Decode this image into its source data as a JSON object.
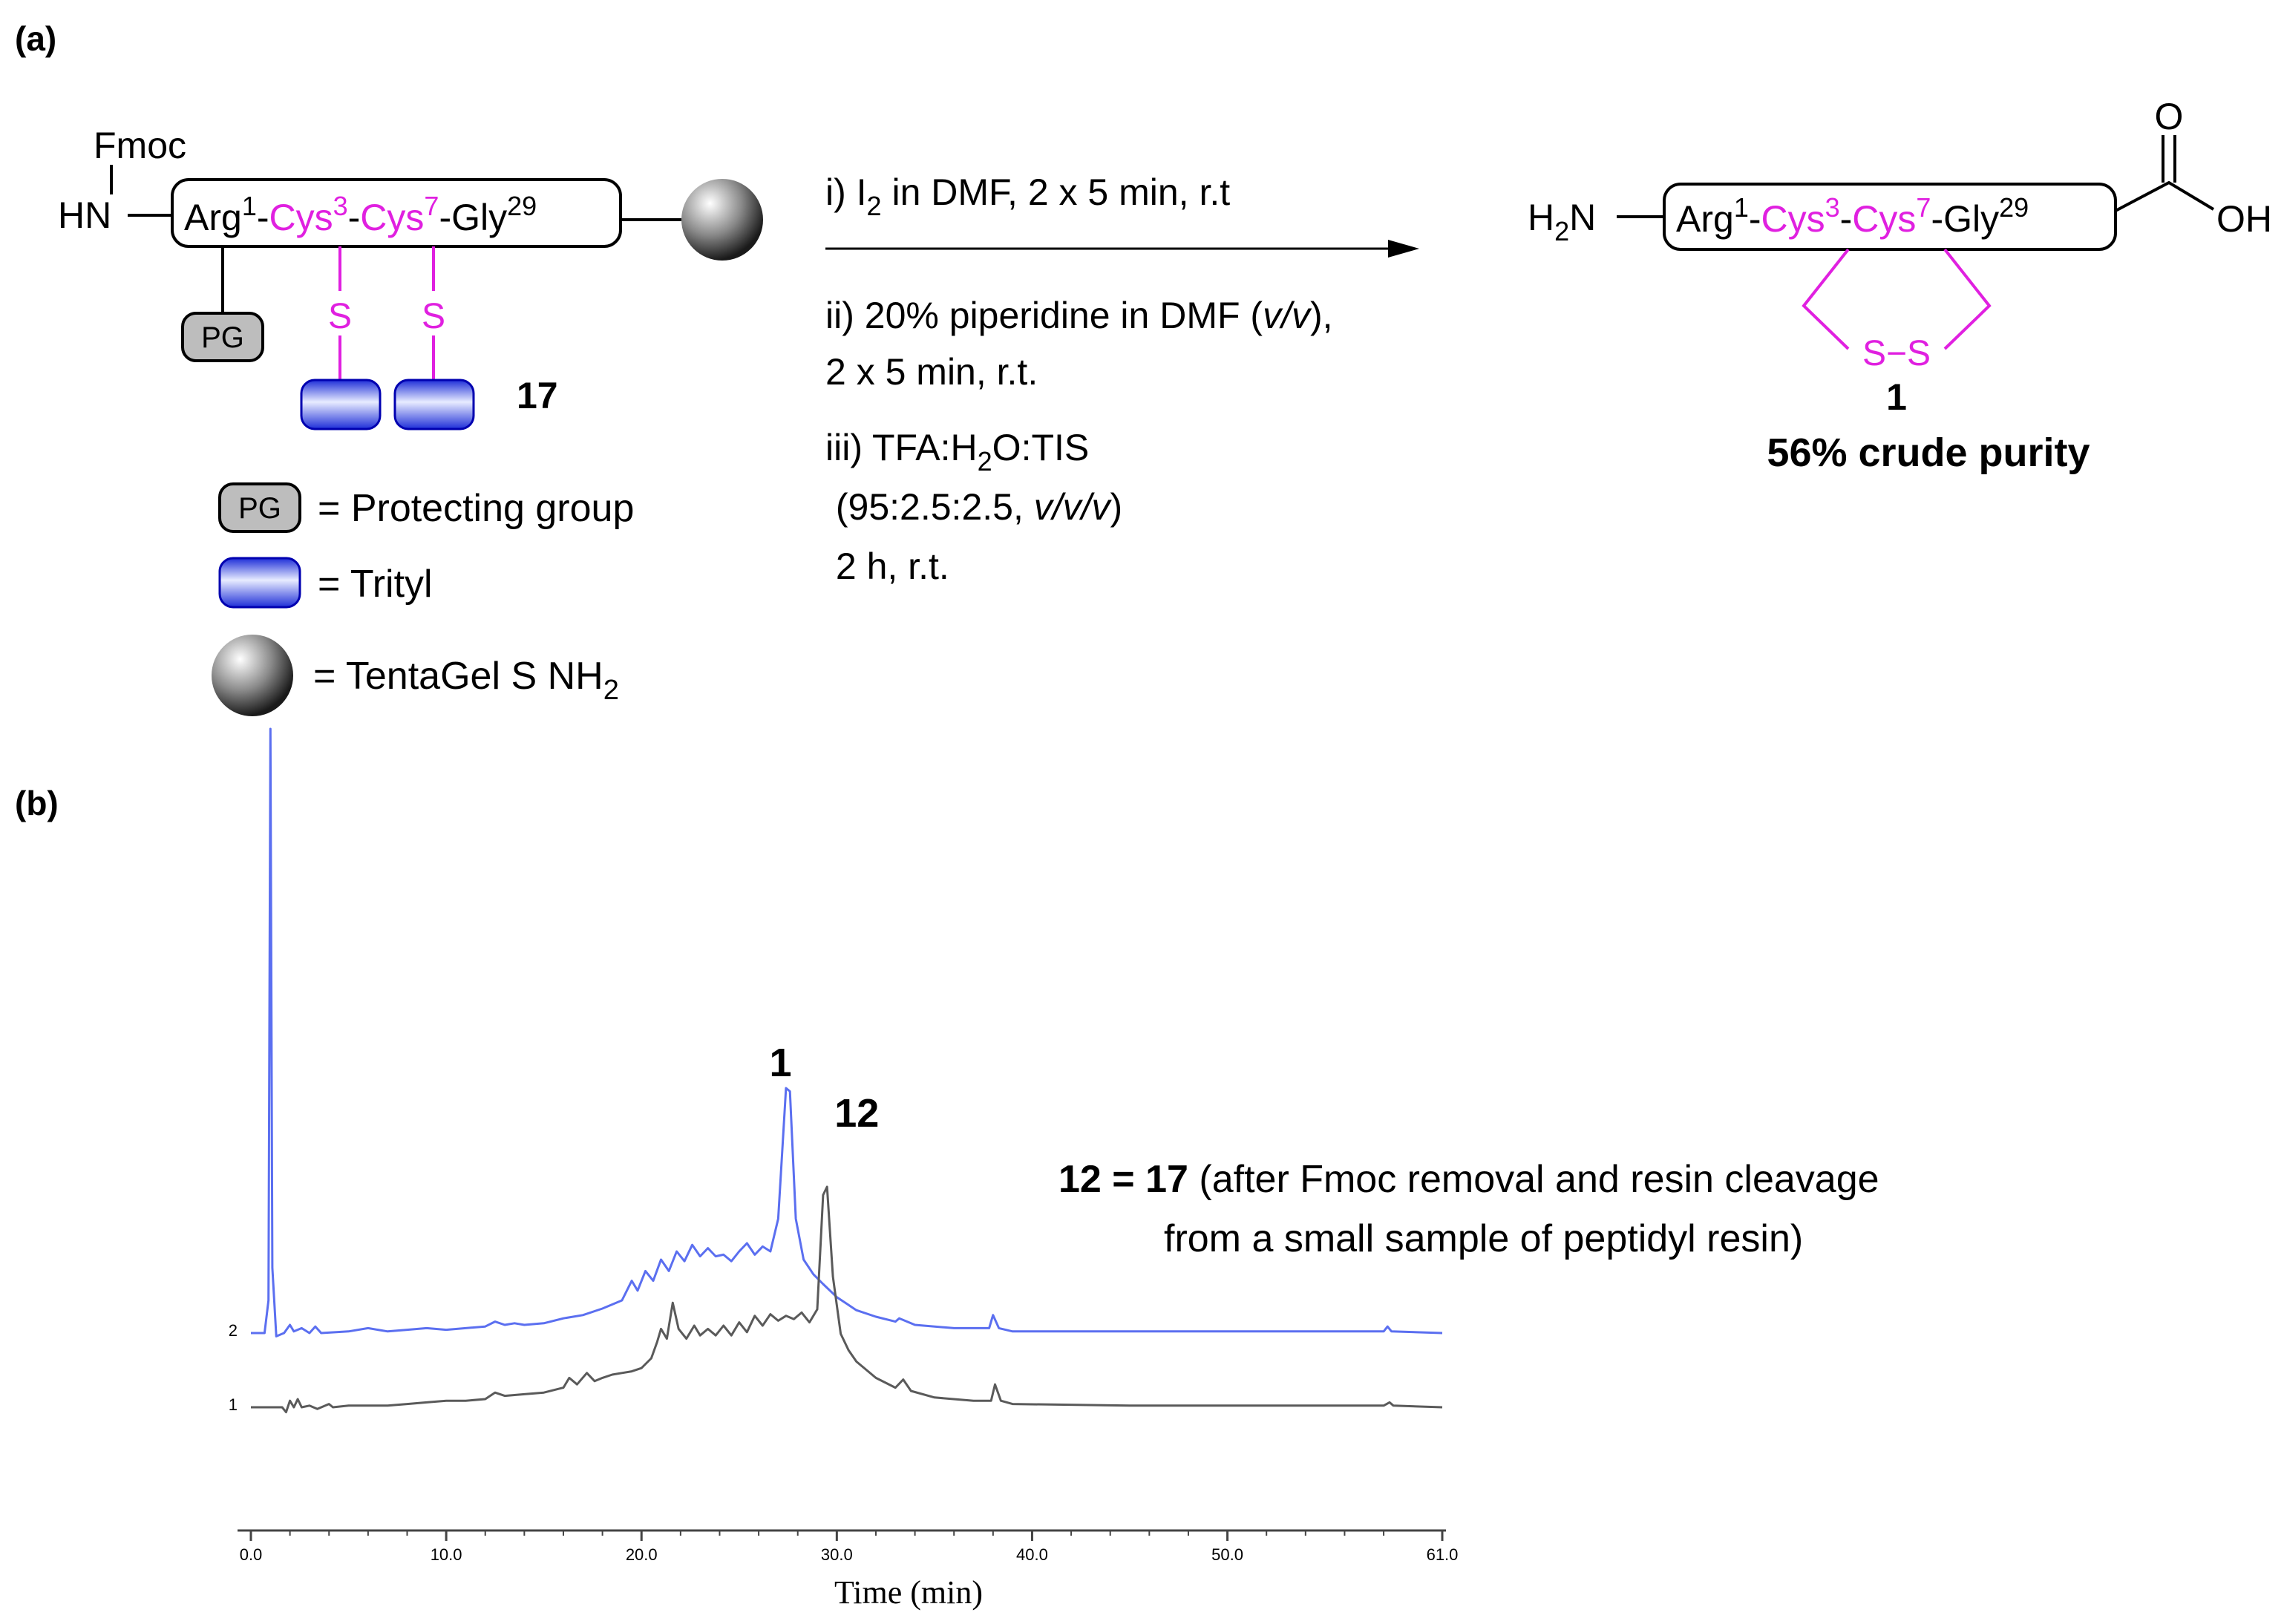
{
  "panel_a": {
    "label": "(a)",
    "start": {
      "fmoc": "Fmoc",
      "hn": "HN",
      "seq": [
        {
          "res": "Arg",
          "num": "1",
          "color": "black",
          "sep": "-"
        },
        {
          "res": "Cys",
          "num": "3",
          "color": "magenta",
          "sep": "-"
        },
        {
          "res": "Cys",
          "num": "7",
          "color": "magenta",
          "sep": "-"
        },
        {
          "res": "Gly",
          "num": "29",
          "color": "black",
          "sep": ""
        }
      ],
      "pg_label": "PG",
      "s1": "S",
      "s2": "S",
      "compound": "17"
    },
    "legend": [
      {
        "symbol": "PG",
        "text": "= Protecting group"
      },
      {
        "symbol": "",
        "text": "= Trityl"
      },
      {
        "symbol": "",
        "text": "= TentaGel S NH",
        "sub": "2"
      }
    ],
    "conditions": {
      "step1": {
        "a": "i) I",
        "sub": "2",
        "b": " in DMF,  2 x 5 min, r.t"
      },
      "step2_line1": {
        "a": "ii) 20% piperidine in DMF (",
        "ital": "v/v",
        "b": "),"
      },
      "step2_line2": "2 x 5 min, r.t.",
      "step3_line1": {
        "a": "iii) TFA:H",
        "sub": "2",
        "b": "O:TIS"
      },
      "step3_line2": {
        "a": " (95:2.5:2.5, ",
        "ital": "v/v/v",
        "b": ")"
      },
      "step3_line3": " 2 h, r.t."
    },
    "product": {
      "h2n": {
        "a": "H",
        "sub": "2",
        "b": "N"
      },
      "o": "O",
      "oh": "OH",
      "ss": "S−S",
      "compound": "1",
      "purity": "56% crude purity"
    }
  },
  "panel_b": {
    "label": "(b)",
    "annotation": {
      "bold": "12 = 17",
      "line1": " (after Fmoc removal and resin cleavage",
      "line2": "from a small sample of peptidyl resin)"
    }
  },
  "chart_data": {
    "type": "line",
    "xlabel": "Time (min)",
    "xlim": [
      0,
      61
    ],
    "x_ticks": [
      "0.0",
      "10.0",
      "20.0",
      "30.0",
      "40.0",
      "50.0",
      "61.0"
    ],
    "peak_labels": [
      {
        "text": "1",
        "x": 27.5
      },
      {
        "text": "12",
        "x": 29.5
      }
    ],
    "series": [
      {
        "name": "2",
        "color": "#5b6ff0",
        "points": [
          [
            0.0,
            0
          ],
          [
            0.7,
            0
          ],
          [
            0.9,
            20
          ],
          [
            1.0,
            370
          ],
          [
            1.1,
            40
          ],
          [
            1.3,
            -2
          ],
          [
            1.7,
            0
          ],
          [
            2.0,
            5
          ],
          [
            2.2,
            1
          ],
          [
            2.6,
            3
          ],
          [
            3.0,
            0
          ],
          [
            3.3,
            4
          ],
          [
            3.6,
            0
          ],
          [
            5.0,
            1
          ],
          [
            6.0,
            3
          ],
          [
            7.0,
            1
          ],
          [
            8.0,
            2
          ],
          [
            9.0,
            3
          ],
          [
            10.0,
            2
          ],
          [
            11.0,
            3
          ],
          [
            12.0,
            4
          ],
          [
            12.5,
            7
          ],
          [
            13.0,
            5
          ],
          [
            13.5,
            6
          ],
          [
            14.0,
            5
          ],
          [
            15.0,
            6
          ],
          [
            16.0,
            9
          ],
          [
            17.0,
            11
          ],
          [
            18.0,
            15
          ],
          [
            19.0,
            20
          ],
          [
            19.5,
            32
          ],
          [
            19.8,
            26
          ],
          [
            20.2,
            38
          ],
          [
            20.6,
            32
          ],
          [
            21.0,
            45
          ],
          [
            21.4,
            38
          ],
          [
            21.8,
            50
          ],
          [
            22.2,
            44
          ],
          [
            22.6,
            54
          ],
          [
            23.0,
            47
          ],
          [
            23.4,
            52
          ],
          [
            23.8,
            47
          ],
          [
            24.2,
            48
          ],
          [
            24.6,
            44
          ],
          [
            25.0,
            50
          ],
          [
            25.4,
            55
          ],
          [
            25.8,
            48
          ],
          [
            26.2,
            53
          ],
          [
            26.6,
            50
          ],
          [
            27.0,
            70
          ],
          [
            27.4,
            150
          ],
          [
            27.6,
            148
          ],
          [
            27.9,
            70
          ],
          [
            28.3,
            45
          ],
          [
            28.8,
            36
          ],
          [
            29.3,
            30
          ],
          [
            30.0,
            22
          ],
          [
            31.0,
            14
          ],
          [
            32.0,
            10
          ],
          [
            33.0,
            7
          ],
          [
            33.2,
            9
          ],
          [
            34.0,
            5
          ],
          [
            36.0,
            3
          ],
          [
            37.8,
            3
          ],
          [
            38.0,
            11
          ],
          [
            38.3,
            3
          ],
          [
            39.0,
            1
          ],
          [
            45.0,
            1
          ],
          [
            50.0,
            1
          ],
          [
            55.0,
            1
          ],
          [
            58.0,
            1
          ],
          [
            58.2,
            4
          ],
          [
            58.4,
            1
          ],
          [
            61.0,
            0
          ]
        ],
        "label": "2"
      },
      {
        "name": "1",
        "color": "#5a5a5a",
        "points": [
          [
            0.0,
            0
          ],
          [
            1.6,
            0
          ],
          [
            1.8,
            -3
          ],
          [
            2.0,
            4
          ],
          [
            2.2,
            0
          ],
          [
            2.4,
            5
          ],
          [
            2.6,
            0
          ],
          [
            3.0,
            1
          ],
          [
            3.4,
            -1
          ],
          [
            4.0,
            2
          ],
          [
            4.2,
            0
          ],
          [
            5.0,
            1
          ],
          [
            6.0,
            1
          ],
          [
            7.0,
            1
          ],
          [
            8.0,
            2
          ],
          [
            9.0,
            3
          ],
          [
            10.0,
            4
          ],
          [
            11.0,
            4
          ],
          [
            12.0,
            5
          ],
          [
            12.5,
            9
          ],
          [
            13.0,
            7
          ],
          [
            14.0,
            8
          ],
          [
            15.0,
            9
          ],
          [
            16.0,
            12
          ],
          [
            16.3,
            18
          ],
          [
            16.7,
            14
          ],
          [
            17.2,
            21
          ],
          [
            17.6,
            16
          ],
          [
            18.0,
            18
          ],
          [
            18.5,
            20
          ],
          [
            19.0,
            21
          ],
          [
            19.5,
            22
          ],
          [
            20.0,
            24
          ],
          [
            20.5,
            30
          ],
          [
            20.8,
            40
          ],
          [
            21.0,
            48
          ],
          [
            21.3,
            42
          ],
          [
            21.6,
            64
          ],
          [
            21.9,
            48
          ],
          [
            22.3,
            42
          ],
          [
            22.7,
            50
          ],
          [
            23.0,
            44
          ],
          [
            23.4,
            48
          ],
          [
            23.8,
            44
          ],
          [
            24.2,
            50
          ],
          [
            24.6,
            44
          ],
          [
            25.0,
            52
          ],
          [
            25.4,
            46
          ],
          [
            25.8,
            56
          ],
          [
            26.2,
            50
          ],
          [
            26.6,
            57
          ],
          [
            27.0,
            53
          ],
          [
            27.4,
            56
          ],
          [
            27.8,
            54
          ],
          [
            28.2,
            58
          ],
          [
            28.6,
            52
          ],
          [
            29.0,
            60
          ],
          [
            29.3,
            130
          ],
          [
            29.5,
            135
          ],
          [
            29.8,
            80
          ],
          [
            30.2,
            45
          ],
          [
            30.6,
            35
          ],
          [
            31.0,
            28
          ],
          [
            32.0,
            18
          ],
          [
            33.0,
            12
          ],
          [
            33.4,
            17
          ],
          [
            33.8,
            10
          ],
          [
            35.0,
            6
          ],
          [
            37.0,
            4
          ],
          [
            37.9,
            4
          ],
          [
            38.1,
            14
          ],
          [
            38.4,
            4
          ],
          [
            39.0,
            2
          ],
          [
            45.0,
            1
          ],
          [
            50.0,
            1
          ],
          [
            55.0,
            1
          ],
          [
            58.0,
            1
          ],
          [
            58.3,
            3
          ],
          [
            58.5,
            1
          ],
          [
            61.0,
            0
          ]
        ],
        "label": "1"
      }
    ]
  }
}
